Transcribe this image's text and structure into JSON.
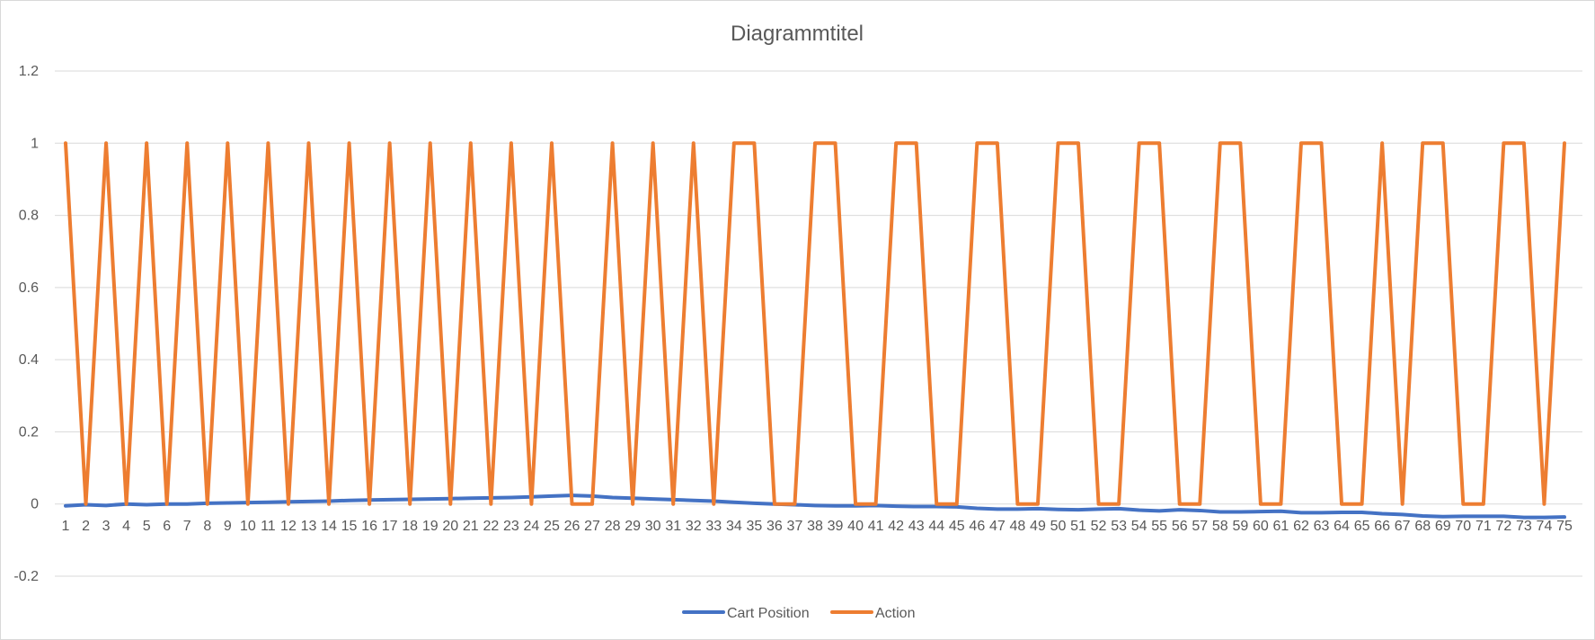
{
  "chart_data": {
    "type": "line",
    "title": "Diagrammtitel",
    "xlabel": "",
    "ylabel": "",
    "x": [
      1,
      2,
      3,
      4,
      5,
      6,
      7,
      8,
      9,
      10,
      11,
      12,
      13,
      14,
      15,
      16,
      17,
      18,
      19,
      20,
      21,
      22,
      23,
      24,
      25,
      26,
      27,
      28,
      29,
      30,
      31,
      32,
      33,
      34,
      35,
      36,
      37,
      38,
      39,
      40,
      41,
      42,
      43,
      44,
      45,
      46,
      47,
      48,
      49,
      50,
      51,
      52,
      53,
      54,
      55,
      56,
      57,
      58,
      59,
      60,
      61,
      62,
      63,
      64,
      65,
      66,
      67,
      68,
      69,
      70,
      71,
      72,
      73,
      74,
      75
    ],
    "ylim": [
      -0.2,
      1.2
    ],
    "yticks": [
      "-0.2",
      "0",
      "0.2",
      "0.4",
      "0.6",
      "0.8",
      "1",
      "1.2"
    ],
    "yticks_values": [
      -0.2,
      0,
      0.2,
      0.4,
      0.6,
      0.8,
      1,
      1.2
    ],
    "grid": true,
    "legend": "bottom",
    "series": [
      {
        "name": "Cart Position",
        "color": "#4472C4",
        "values": [
          -0.005,
          -0.002,
          -0.004,
          0,
          -0.002,
          0,
          0,
          0.002,
          0.003,
          0.004,
          0.005,
          0.006,
          0.007,
          0.008,
          0.01,
          0.011,
          0.012,
          0.013,
          0.014,
          0.015,
          0.016,
          0.017,
          0.018,
          0.02,
          0.022,
          0.024,
          0.022,
          0.018,
          0.016,
          0.014,
          0.012,
          0.01,
          0.008,
          0.005,
          0.002,
          0,
          -0.002,
          -0.004,
          -0.005,
          -0.005,
          -0.004,
          -0.006,
          -0.007,
          -0.007,
          -0.008,
          -0.012,
          -0.014,
          -0.014,
          -0.013,
          -0.015,
          -0.016,
          -0.014,
          -0.013,
          -0.017,
          -0.019,
          -0.016,
          -0.018,
          -0.022,
          -0.022,
          -0.021,
          -0.02,
          -0.024,
          -0.024,
          -0.023,
          -0.023,
          -0.027,
          -0.029,
          -0.033,
          -0.035,
          -0.034,
          -0.034,
          -0.034,
          -0.037,
          -0.037,
          -0.036
        ]
      },
      {
        "name": "Action",
        "color": "#ED7D31",
        "values": [
          1,
          0,
          1,
          0,
          1,
          0,
          1,
          0,
          1,
          0,
          1,
          0,
          1,
          0,
          1,
          0,
          1,
          0,
          1,
          0,
          1,
          0,
          1,
          0,
          1,
          0,
          0,
          1,
          0,
          1,
          0,
          1,
          0,
          1,
          1,
          0,
          0,
          1,
          1,
          0,
          0,
          1,
          1,
          0,
          0,
          1,
          1,
          0,
          0,
          1,
          1,
          0,
          0,
          1,
          1,
          0,
          0,
          1,
          1,
          0,
          0,
          1,
          1,
          0,
          0,
          1,
          0,
          1,
          1,
          0,
          0,
          1,
          1,
          0,
          1
        ]
      }
    ]
  }
}
